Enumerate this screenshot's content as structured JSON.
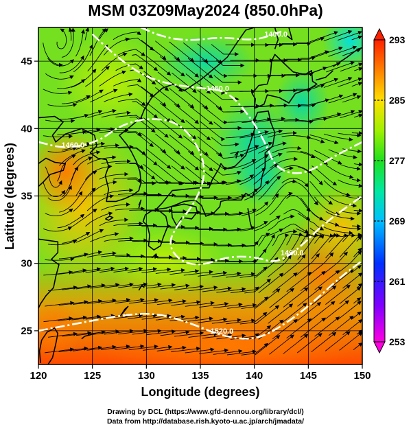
{
  "title": "MSM 03Z09May2024 (850.0hPa)",
  "chart_data": {
    "type": "heatmap",
    "title": "MSM 03Z09May2024 (850.0hPa)",
    "xlabel": "Longitude (degrees)",
    "ylabel": "Latitude  (degrees)",
    "xlim": [
      120,
      150
    ],
    "ylim": [
      22.5,
      47.5
    ],
    "x_ticks": [
      120,
      125,
      130,
      135,
      140,
      145,
      150
    ],
    "y_ticks": [
      25,
      30,
      35,
      40,
      45
    ],
    "x_tick_labels": [
      "120",
      "125",
      "130",
      "135",
      "140",
      "145",
      "150"
    ],
    "y_tick_labels": [
      "25",
      "30",
      "35",
      "40",
      "45"
    ],
    "grid": true,
    "colorbar": {
      "placement": "right",
      "range": [
        253,
        293
      ],
      "ticks": [
        253,
        261,
        269,
        277,
        285,
        293
      ],
      "tick_labels": [
        "253",
        "261",
        "269",
        "277",
        "285",
        "293"
      ],
      "colors": [
        "#ff00e0",
        "#8000ff",
        "#0040ff",
        "#00c8ff",
        "#00e8a0",
        "#20e020",
        "#a0f000",
        "#ffe000",
        "#ff8000",
        "#ff2000"
      ]
    },
    "contours": [
      {
        "label": "1400.0",
        "points": [
          [
            129.5,
            47.5
          ],
          [
            131.5,
            46.8
          ],
          [
            134,
            46.5
          ],
          [
            137,
            46.8
          ],
          [
            140,
            46.5
          ],
          [
            142.5,
            47.2
          ]
        ]
      },
      {
        "label": "1450.0",
        "points": [
          [
            125,
            47
          ],
          [
            127,
            45.5
          ],
          [
            129.5,
            44
          ],
          [
            132,
            43.3
          ],
          [
            135,
            43
          ],
          [
            137.5,
            42.8
          ],
          [
            139.5,
            41
          ],
          [
            141,
            39
          ],
          [
            142,
            37
          ],
          [
            144.5,
            36.5
          ],
          [
            147.5,
            38
          ],
          [
            150,
            39
          ]
        ]
      },
      {
        "label": "1460.0",
        "points": [
          [
            120,
            39
          ],
          [
            122.5,
            38.5
          ],
          [
            125.5,
            39
          ],
          [
            127.5,
            40.2
          ],
          [
            130,
            40.8
          ],
          [
            133,
            40.5
          ],
          [
            135,
            38.5
          ],
          [
            135.5,
            36.5
          ],
          [
            134.5,
            34.5
          ],
          [
            133,
            33
          ],
          [
            132,
            31.5
          ],
          [
            133,
            30.2
          ],
          [
            135,
            29.8
          ],
          [
            137.5,
            30.5
          ],
          [
            140,
            30.5
          ],
          [
            142,
            30
          ],
          [
            144,
            31
          ],
          [
            146.5,
            33
          ],
          [
            150,
            35
          ]
        ]
      },
      {
        "label": "1520.0",
        "points": [
          [
            120,
            25
          ],
          [
            124,
            25.6
          ],
          [
            128,
            26.2
          ],
          [
            131,
            26.3
          ],
          [
            134,
            25.6
          ],
          [
            137,
            24.6
          ],
          [
            140,
            24.3
          ],
          [
            142.5,
            25.3
          ],
          [
            145,
            26.8
          ],
          [
            148,
            29
          ],
          [
            150,
            30.2
          ]
        ]
      }
    ],
    "contour_labels": [
      {
        "text": "1400.0",
        "x": 142,
        "y": 46.8
      },
      {
        "text": "1450.0",
        "x": 136.6,
        "y": 42.8
      },
      {
        "text": "1460.0",
        "x": 123.2,
        "y": 38.6
      },
      {
        "text": "1460.0",
        "x": 143.5,
        "y": 30.6
      },
      {
        "text": "1520.0",
        "x": 137,
        "y": 24.8
      }
    ]
  },
  "credits": {
    "line1": "Drawing by DCL (https://www.gfd-dennou.org/library/dcl/)",
    "line2": "Data from http://database.rish.kyoto-u.ac.jp/arch/jmadata/"
  }
}
